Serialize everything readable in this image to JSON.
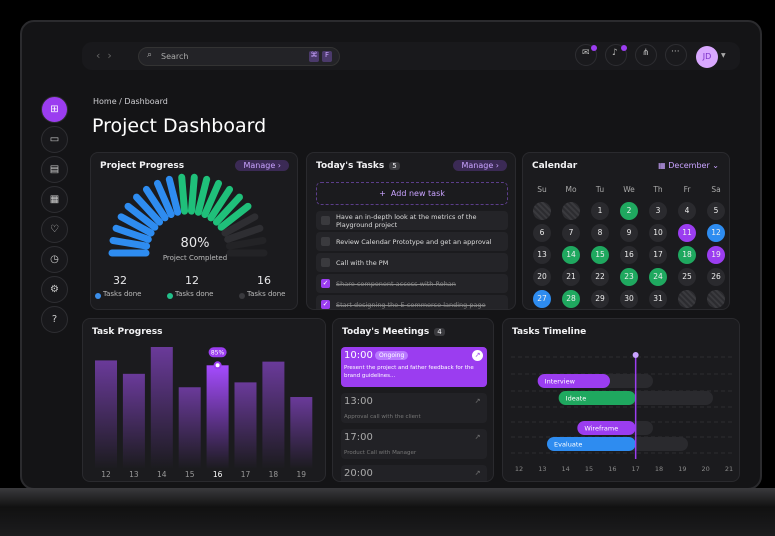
{
  "topbar": {
    "search": "Search",
    "shortcut": [
      "⌘",
      "F"
    ],
    "avatar": "JD"
  },
  "breadcrumb": "Home / Dashboard",
  "title": "Project Dashboard",
  "project_progress": {
    "title": "Project Progress",
    "manage": "Manage",
    "percent": 80,
    "percent_label": "80%",
    "caption": "Project Completed",
    "stats": [
      {
        "value": 32,
        "label": "Tasks done",
        "color": "#3b8eea"
      },
      {
        "value": 12,
        "label": "Tasks done",
        "color": "#22c08a"
      },
      {
        "value": 16,
        "label": "Tasks done",
        "color": "#3a3a3e"
      }
    ]
  },
  "todays_tasks": {
    "title": "Today's Tasks",
    "count": "5",
    "manage": "Manage",
    "add": "Add new task",
    "items": [
      {
        "text": "Have an in-depth look at the metrics of the Playground project",
        "done": false
      },
      {
        "text": "Review Calendar Prototype and get an approval",
        "done": false
      },
      {
        "text": "Call with the PM",
        "done": false
      },
      {
        "text": "Share component access with Rohan",
        "done": true
      },
      {
        "text": "Start designing the E-commerce landing page",
        "done": true
      }
    ]
  },
  "calendar": {
    "title": "Calendar",
    "month": "December",
    "weekdays": [
      "Su",
      "Mo",
      "Tu",
      "We",
      "Th",
      "Fr",
      "Sa"
    ],
    "days": [
      1,
      2,
      3,
      4,
      5,
      6,
      7,
      8,
      9,
      10,
      11,
      12,
      13,
      14,
      15,
      16,
      17,
      18,
      19,
      20,
      21,
      22,
      23,
      24,
      25,
      26,
      27,
      28,
      29,
      30,
      31
    ],
    "marked": [
      {
        "color": "#1fa85f",
        "days": [
          2,
          14,
          15,
          18,
          23,
          24,
          28
        ]
      },
      {
        "color": "#9b3df0",
        "days": [
          11,
          19
        ]
      },
      {
        "color": "#2e8cf0",
        "days": [
          12,
          27
        ]
      }
    ]
  },
  "task_progress": {
    "title": "Task Progress",
    "categories": [
      "12",
      "13",
      "14",
      "15",
      "16",
      "17",
      "18",
      "19"
    ],
    "values": [
      89,
      78,
      100,
      67,
      85,
      71,
      88,
      59
    ],
    "value_labels": [
      null,
      null,
      null,
      null,
      "85%",
      null,
      null,
      null
    ],
    "ylim": [
      0,
      100
    ]
  },
  "meetings": {
    "title": "Today's Meetings",
    "count": "4",
    "items": [
      {
        "time": "10:00",
        "status": "Ongoing",
        "text": "Present the project and father feedback for the brand guidelines..."
      },
      {
        "time": "13:00",
        "text": "Approval call with the client"
      },
      {
        "time": "17:00",
        "text": "Product Call with Manager"
      },
      {
        "time": "20:00",
        "text": ""
      }
    ]
  },
  "timeline": {
    "title": "Tasks Timeline",
    "xlim": [
      12,
      21
    ],
    "xticks": [
      12,
      13,
      14,
      15,
      16,
      17,
      18,
      19,
      20,
      21
    ],
    "today": 17,
    "tasks": [
      {
        "name": "Interview",
        "color": "#9b3df0",
        "start": 12.8,
        "end": 15.9
      },
      {
        "name": "Ideate",
        "color": "#1fa85f",
        "start": 13.7,
        "end": 17
      },
      {
        "name": "Wireframe",
        "color": "#9b3df0",
        "start": 14.5,
        "end": 17
      },
      {
        "name": "Evaluate",
        "color": "#2e8cf0",
        "start": 13.2,
        "end": 17
      }
    ]
  }
}
